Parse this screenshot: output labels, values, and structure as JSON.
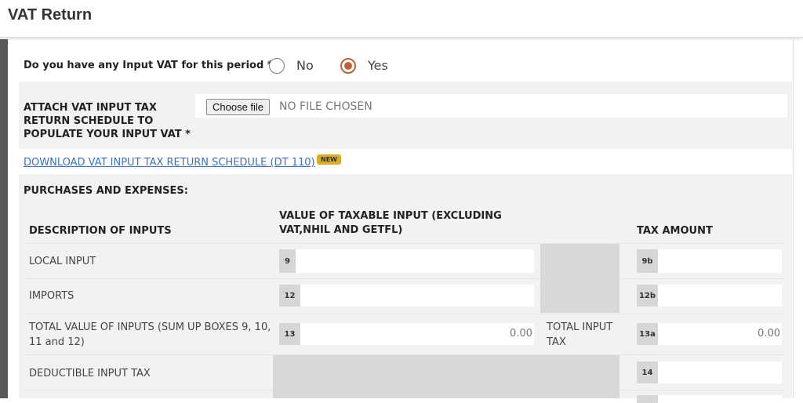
{
  "header": {
    "title": "VAT Return"
  },
  "input_vat_question": {
    "label": "Do you have any Input VAT for this period *",
    "options": [
      {
        "label": "No",
        "selected": false
      },
      {
        "label": "Yes",
        "selected": true
      }
    ]
  },
  "attach": {
    "label_lines": [
      "ATTACH VAT INPUT TAX",
      "RETURN SCHEDULE TO",
      "POPULATE YOUR INPUT VAT *"
    ],
    "button_label": "Choose file",
    "file_status": "NO FILE CHOSEN"
  },
  "download": {
    "link_text": "DOWNLOAD VAT INPUT TAX RETURN SCHEDULE (DT 110)",
    "badge": "NEW"
  },
  "purchases": {
    "heading": "PURCHASES AND EXPENSES:",
    "columns": {
      "description": "DESCRIPTION OF INPUTS",
      "value_lines": [
        "VALUE OF TAXABLE INPUT (EXCLUDING",
        "VAT,NHIL AND GETFL)"
      ],
      "tax": "TAX AMOUNT"
    },
    "rows": [
      {
        "description": "LOCAL INPUT",
        "value_box": "9",
        "value": "",
        "tax_box": "9b",
        "tax": ""
      },
      {
        "description": "IMPORTS",
        "value_box": "12",
        "value": "",
        "tax_box": "12b",
        "tax": ""
      },
      {
        "description_lines": [
          "TOTAL VALUE OF INPUTS (SUM UP BOXES 9, 10,",
          "11 and 12)"
        ],
        "value_box": "13",
        "value": "0.00",
        "middle_lines": [
          "TOTAL INPUT",
          "TAX"
        ],
        "tax_box": "13a",
        "tax": "0.00"
      },
      {
        "description": "DEDUCTIBLE INPUT TAX",
        "tax_box": "14",
        "tax": ""
      }
    ]
  },
  "colors": {
    "accent": "#c0603a",
    "link": "#3a6fc4",
    "badge": "#dbab22"
  }
}
